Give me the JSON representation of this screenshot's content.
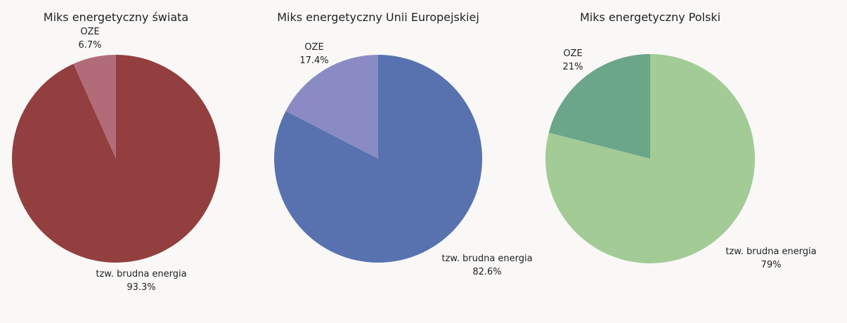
{
  "chart_data": [
    {
      "type": "pie",
      "title": "Miks energetyczny świata",
      "slices": [
        {
          "label": "tzw. brudna energia",
          "value": 93.3,
          "display": "93.3%",
          "color": "#933f3f"
        },
        {
          "label": "OZE",
          "value": 6.7,
          "display": "6.7%",
          "color": "#b26b78"
        }
      ]
    },
    {
      "type": "pie",
      "title": "Miks energetyczny Unii Europejskiej",
      "slices": [
        {
          "label": "tzw. brudna energia",
          "value": 82.6,
          "display": "82.6%",
          "color": "#5872b0"
        },
        {
          "label": "OZE",
          "value": 17.4,
          "display": "17.4%",
          "color": "#8a8bc4"
        }
      ]
    },
    {
      "type": "pie",
      "title": "Miks energetyczny Polski",
      "slices": [
        {
          "label": "tzw. brudna energia",
          "value": 79,
          "display": "79%",
          "color": "#a3cb96"
        },
        {
          "label": "OZE",
          "value": 21,
          "display": "21%",
          "color": "#6ba68a"
        }
      ]
    }
  ]
}
